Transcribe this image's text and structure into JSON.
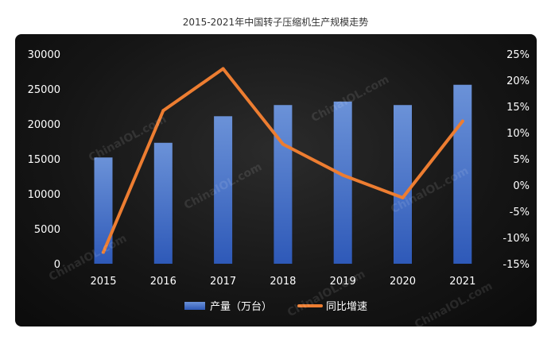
{
  "page": {
    "title": "2015-2021年中国转子压缩机生产规模走势"
  },
  "watermark": "ChinaIOL.com",
  "colors": {
    "bar": "#4472c4",
    "line": "#ed7d31",
    "background": "#151515",
    "text": "#ffffff"
  },
  "chart_data": {
    "type": "bar+line",
    "categories": [
      "2015",
      "2016",
      "2017",
      "2018",
      "2019",
      "2020",
      "2021"
    ],
    "series": [
      {
        "name": "产量（万台）",
        "type": "bar",
        "axis": "left",
        "values": [
          15200,
          17300,
          21100,
          22700,
          23200,
          22700,
          25600
        ]
      },
      {
        "name": "同比增速",
        "type": "line",
        "axis": "right",
        "unit": "%",
        "values": [
          -12.8,
          14.2,
          22.2,
          7.8,
          1.9,
          -2.4,
          12.2
        ]
      }
    ],
    "y_left": {
      "min": 0,
      "max": 30000,
      "ticks": [
        "30000",
        "25000",
        "20000",
        "15000",
        "10000",
        "5000",
        "0"
      ],
      "tick_values": [
        30000,
        25000,
        20000,
        15000,
        10000,
        5000,
        0
      ]
    },
    "y_right": {
      "min": -15,
      "max": 25,
      "ticks": [
        "25%",
        "20%",
        "15%",
        "10%",
        "5%",
        "0%",
        "-5%",
        "-10%",
        "-15%"
      ],
      "tick_values": [
        25,
        20,
        15,
        10,
        5,
        0,
        -5,
        -10,
        -15
      ]
    },
    "grid": false,
    "legend": {
      "position": "bottom"
    }
  }
}
